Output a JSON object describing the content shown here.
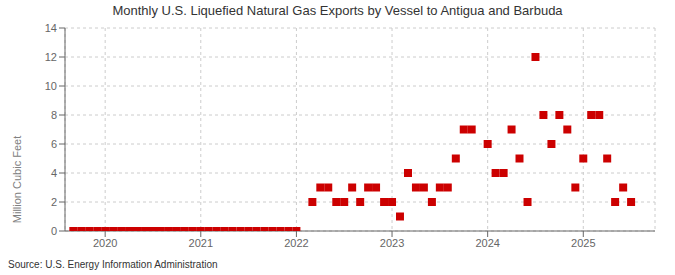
{
  "chart_data": {
    "type": "scatter",
    "title": "Monthly U.S. Liquefied Natural Gas Exports by Vessel to Antigua and Barbuda",
    "y_label": "Million Cubic Feet",
    "annotation": "Source: U.S. Energy Information Administration",
    "color": "#cc0000",
    "marker": "square",
    "grid": true,
    "xlim": [
      2019.58,
      2025.75
    ],
    "xticks": [
      2020,
      2021,
      2022,
      2023,
      2024,
      2025
    ],
    "ylim": [
      0,
      14
    ],
    "yticks": [
      0,
      2,
      4,
      6,
      8,
      10,
      12,
      14
    ],
    "x": [
      2019.667,
      2019.75,
      2019.833,
      2019.917,
      2020.0,
      2020.083,
      2020.167,
      2020.25,
      2020.333,
      2020.417,
      2020.5,
      2020.583,
      2020.667,
      2020.75,
      2020.833,
      2020.917,
      2021.0,
      2021.083,
      2021.167,
      2021.25,
      2021.333,
      2021.417,
      2021.5,
      2021.583,
      2021.667,
      2021.75,
      2021.833,
      2021.917,
      2022.0,
      2022.167,
      2022.25,
      2022.333,
      2022.417,
      2022.5,
      2022.583,
      2022.667,
      2022.75,
      2022.833,
      2022.917,
      2023.0,
      2023.083,
      2023.167,
      2023.25,
      2023.333,
      2023.417,
      2023.5,
      2023.583,
      2023.667,
      2023.75,
      2023.833,
      2024.0,
      2024.083,
      2024.167,
      2024.25,
      2024.333,
      2024.417,
      2024.5,
      2024.583,
      2024.667,
      2024.75,
      2024.833,
      2024.917,
      2025.0,
      2025.083,
      2025.167,
      2025.25,
      2025.333,
      2025.417,
      2025.5
    ],
    "values": [
      0,
      0,
      0,
      0,
      0,
      0,
      0,
      0,
      0,
      0,
      0,
      0,
      0,
      0,
      0,
      0,
      0,
      0,
      0,
      0,
      0,
      0,
      0,
      0,
      0,
      0,
      0,
      0,
      0,
      2,
      3,
      3,
      2,
      2,
      3,
      2,
      3,
      3,
      2,
      2,
      1,
      4,
      3,
      3,
      2,
      3,
      3,
      5,
      7,
      7,
      6,
      4,
      4,
      7,
      5,
      2,
      12,
      8,
      6,
      8,
      7,
      3,
      5,
      8,
      8,
      5,
      2,
      3,
      2
    ]
  }
}
